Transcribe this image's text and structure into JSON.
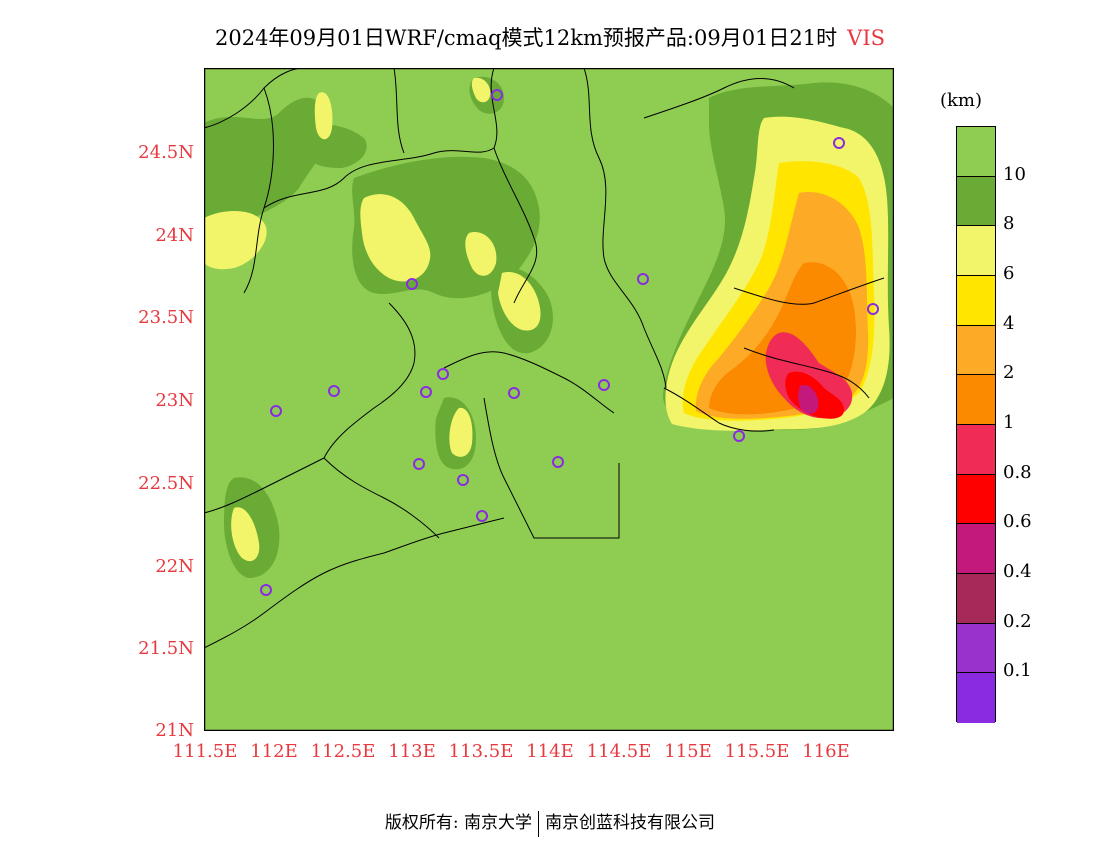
{
  "title": {
    "main": "2024年09月01日WRF/cmaq模式12km预报产品:09月01日21时",
    "variable": "VIS"
  },
  "map": {
    "background_color": "#8fcd52",
    "lat_labels": [
      "24.5N",
      "24N",
      "23.5N",
      "23N",
      "22.5N",
      "22N",
      "21.5N",
      "21N"
    ],
    "lon_labels": [
      "111.5E",
      "112E",
      "112.5E",
      "113E",
      "113.5E",
      "114E",
      "114.5E",
      "115E",
      "115.5E",
      "116E"
    ],
    "station_marker_color": "#8a2be2"
  },
  "legend": {
    "unit": "(km)",
    "colors": [
      "#8fcd52",
      "#6aab36",
      "#f2f56a",
      "#ffe500",
      "#fdab26",
      "#fb8a00",
      "#f02b56",
      "#ff0000",
      "#c3187c",
      "#a52a5a",
      "#9932cc",
      "#8a2be2"
    ],
    "labels": [
      "10",
      "8",
      "6",
      "4",
      "2",
      "1",
      "0.8",
      "0.6",
      "0.4",
      "0.2",
      "0.1"
    ]
  },
  "footer": {
    "left": "版权所有: 南京大学",
    "right": "南京创蓝科技有限公司"
  }
}
